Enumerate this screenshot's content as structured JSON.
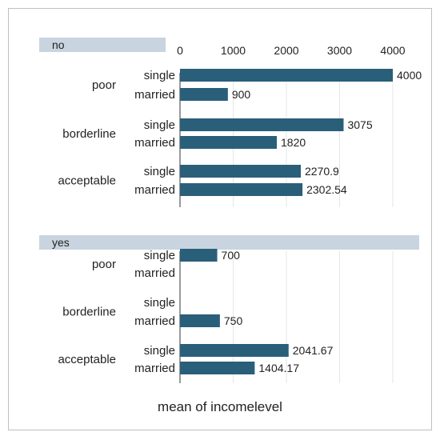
{
  "chart_data": {
    "type": "bar",
    "orientation": "horizontal",
    "xlabel": "mean of incomelevel",
    "xlim": [
      0,
      4500
    ],
    "xticks": [
      0,
      1000,
      2000,
      3000,
      4000
    ],
    "grid": true,
    "bar_color": "#2a5f7a",
    "panel_header_color": "#c8d4df",
    "panels": [
      {
        "label": "no",
        "groups": [
          {
            "label": "poor",
            "bars": [
              {
                "label": "single",
                "value": 4000,
                "value_label": "4000"
              },
              {
                "label": "married",
                "value": 900,
                "value_label": "900"
              }
            ]
          },
          {
            "label": "borderline",
            "bars": [
              {
                "label": "single",
                "value": 3075,
                "value_label": "3075"
              },
              {
                "label": "married",
                "value": 1820,
                "value_label": "1820"
              }
            ]
          },
          {
            "label": "acceptable",
            "bars": [
              {
                "label": "single",
                "value": 2270.9,
                "value_label": "2270.9"
              },
              {
                "label": "married",
                "value": 2302.54,
                "value_label": "2302.54"
              }
            ]
          }
        ]
      },
      {
        "label": "yes",
        "groups": [
          {
            "label": "poor",
            "bars": [
              {
                "label": "single",
                "value": 700,
                "value_label": "700"
              },
              {
                "label": "married",
                "value": null,
                "value_label": null
              }
            ]
          },
          {
            "label": "borderline",
            "bars": [
              {
                "label": "single",
                "value": null,
                "value_label": null
              },
              {
                "label": "married",
                "value": 750,
                "value_label": "750"
              }
            ]
          },
          {
            "label": "acceptable",
            "bars": [
              {
                "label": "single",
                "value": 2041.67,
                "value_label": "2041.67"
              },
              {
                "label": "married",
                "value": 1404.17,
                "value_label": "1404.17"
              }
            ]
          }
        ]
      }
    ]
  }
}
